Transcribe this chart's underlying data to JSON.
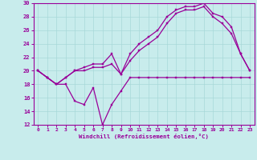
{
  "xlabel": "Windchill (Refroidissement éolien,°C)",
  "xlim": [
    -0.5,
    23.5
  ],
  "ylim": [
    12,
    30
  ],
  "xticks": [
    0,
    1,
    2,
    3,
    4,
    5,
    6,
    7,
    8,
    9,
    10,
    11,
    12,
    13,
    14,
    15,
    16,
    17,
    18,
    19,
    20,
    21,
    22,
    23
  ],
  "yticks": [
    12,
    14,
    16,
    18,
    20,
    22,
    24,
    26,
    28,
    30
  ],
  "background_color": "#c8ecec",
  "grid_color": "#a8d8d8",
  "line_color": "#990099",
  "line1_y": [
    20,
    19,
    18,
    18,
    15.5,
    15,
    17.5,
    12,
    15,
    17,
    19,
    19,
    19,
    19,
    19,
    19,
    19,
    19,
    19,
    19,
    19,
    19,
    19,
    19
  ],
  "line2_y": [
    20,
    19,
    18,
    19,
    20,
    20.5,
    21,
    21,
    22.5,
    19.5,
    22.5,
    24,
    25,
    26,
    28,
    29,
    29.5,
    29.5,
    30,
    28.5,
    28,
    26.5,
    22.5,
    20
  ],
  "line3_y": [
    20,
    19,
    18,
    19,
    20,
    20,
    20.5,
    20.5,
    21,
    19.5,
    21.5,
    23,
    24,
    25,
    27,
    28.5,
    29,
    29,
    29.5,
    28,
    27,
    25.5,
    22.5,
    20
  ]
}
